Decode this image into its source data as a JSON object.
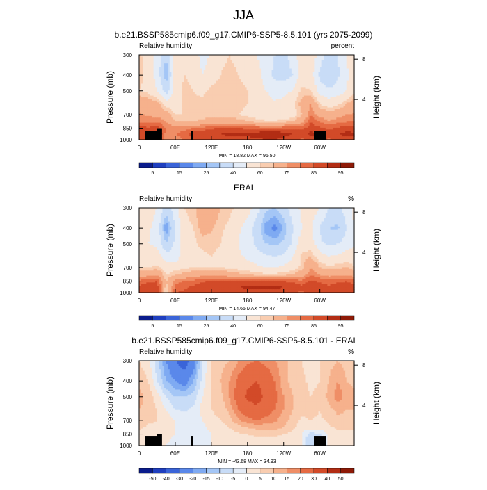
{
  "figure": {
    "season": "JJA"
  },
  "colors": {
    "frame": "#000000",
    "land_mask": "#000000",
    "background": "#ffffff"
  },
  "chart_data": [
    {
      "type": "heatmap",
      "title": "b.e21.BSSP585cmip6.f09_g17.CMIP6-SSP5-8.5.101 (yrs 2075-2099)",
      "left_string": "Relative humidity",
      "right_string": "percent",
      "ylabel": "Pressure (mb)",
      "ylabel_right": "Height (km)",
      "x_ticks": [
        "0",
        "60E",
        "120E",
        "180",
        "120W",
        "60W"
      ],
      "x_tick_values": [
        0,
        60,
        120,
        180,
        240,
        300
      ],
      "xlim": [
        0,
        357
      ],
      "y_ticks": [
        "300",
        "400",
        "500",
        "700",
        "850",
        "1000"
      ],
      "y_tick_values": [
        300,
        400,
        500,
        700,
        850,
        1000
      ],
      "ylim": [
        1000,
        300
      ],
      "y_scale": "log-pressure",
      "height_ticks": [
        "4",
        "8"
      ],
      "height_tick_values": [
        4,
        8
      ],
      "stats": "MIN = 18.82  MAX = 96.50",
      "colorbar_labels": [
        "5",
        "15",
        "25",
        "40",
        "60",
        "75",
        "85",
        "95"
      ],
      "colorbar_colors": [
        "#0a1c8c",
        "#1f3fbf",
        "#3a64d8",
        "#5a88ea",
        "#7faaf2",
        "#a4c6f6",
        "#c8dcf7",
        "#e4ecf7",
        "#f9e4d4",
        "#f9cdb0",
        "#f6b18c",
        "#ef8e66",
        "#e56a43",
        "#d24a28",
        "#b22d14",
        "#8e1a07"
      ],
      "colorbar_label_positions": [
        1,
        3,
        5,
        7,
        9,
        11,
        13,
        15
      ],
      "field": {
        "variable": "relative humidity",
        "units": "percent",
        "longitudes": [
          0,
          15,
          30,
          45,
          60,
          75,
          90,
          105,
          120,
          135,
          150,
          165,
          180,
          195,
          210,
          225,
          240,
          255,
          270,
          285,
          300,
          315,
          330,
          345
        ],
        "pressure_levels": [
          300,
          400,
          500,
          600,
          700,
          775,
          850,
          925,
          1000
        ],
        "values": [
          [
            62,
            55,
            45,
            30,
            60,
            55,
            58,
            45,
            52,
            58,
            60,
            58,
            55,
            50,
            45,
            40,
            35,
            45,
            55,
            58,
            45,
            35,
            40,
            50
          ],
          [
            62,
            58,
            45,
            25,
            55,
            60,
            58,
            50,
            55,
            60,
            62,
            60,
            58,
            55,
            45,
            38,
            35,
            40,
            55,
            55,
            38,
            30,
            38,
            48
          ],
          [
            60,
            58,
            50,
            35,
            55,
            62,
            60,
            58,
            62,
            64,
            64,
            62,
            60,
            58,
            50,
            45,
            48,
            50,
            62,
            60,
            45,
            42,
            45,
            50
          ],
          [
            72,
            70,
            68,
            55,
            55,
            62,
            62,
            62,
            64,
            64,
            64,
            62,
            60,
            58,
            55,
            52,
            52,
            58,
            68,
            75,
            60,
            55,
            58,
            65
          ],
          [
            76,
            74,
            72,
            70,
            60,
            60,
            60,
            60,
            62,
            62,
            62,
            60,
            58,
            55,
            52,
            50,
            52,
            55,
            65,
            80,
            72,
            70,
            72,
            75
          ],
          [
            80,
            78,
            80,
            75,
            65,
            65,
            65,
            68,
            70,
            70,
            70,
            68,
            66,
            64,
            62,
            62,
            64,
            66,
            72,
            85,
            80,
            76,
            78,
            80
          ],
          [
            88,
            86,
            88,
            80,
            78,
            78,
            80,
            82,
            84,
            86,
            86,
            85,
            84,
            84,
            84,
            84,
            84,
            84,
            84,
            88,
            86,
            84,
            86,
            88
          ],
          [
            90,
            88,
            92,
            78,
            80,
            82,
            88,
            88,
            90,
            90,
            92,
            92,
            92,
            93,
            94,
            94,
            93,
            90,
            88,
            92,
            90,
            88,
            90,
            92
          ],
          [
            88,
            86,
            90,
            75,
            78,
            80,
            86,
            86,
            86,
            86,
            88,
            88,
            88,
            88,
            90,
            90,
            88,
            86,
            84,
            86,
            86,
            84,
            86,
            88
          ]
        ]
      }
    },
    {
      "type": "heatmap",
      "title": "ERAI",
      "left_string": "Relative humidity",
      "right_string": "%",
      "ylabel": "Pressure (mb)",
      "ylabel_right": "Height (km)",
      "x_ticks": [
        "0",
        "60E",
        "120E",
        "180",
        "120W",
        "60W"
      ],
      "x_tick_values": [
        0,
        60,
        120,
        180,
        240,
        300
      ],
      "xlim": [
        0,
        357
      ],
      "y_ticks": [
        "300",
        "400",
        "500",
        "700",
        "850",
        "1000"
      ],
      "y_tick_values": [
        300,
        400,
        500,
        700,
        850,
        1000
      ],
      "ylim": [
        1000,
        300
      ],
      "y_scale": "log-pressure",
      "height_ticks": [
        "4",
        "8"
      ],
      "height_tick_values": [
        4,
        8
      ],
      "stats": "MIN = 14.65  MAX = 94.47",
      "colorbar_labels": [
        "5",
        "15",
        "25",
        "40",
        "60",
        "75",
        "85",
        "95"
      ],
      "colorbar_colors": [
        "#0a1c8c",
        "#1f3fbf",
        "#3a64d8",
        "#5a88ea",
        "#7faaf2",
        "#a4c6f6",
        "#c8dcf7",
        "#e4ecf7",
        "#f9e4d4",
        "#f9cdb0",
        "#f6b18c",
        "#ef8e66",
        "#e56a43",
        "#d24a28",
        "#b22d14",
        "#8e1a07"
      ],
      "colorbar_label_positions": [
        1,
        3,
        5,
        7,
        9,
        11,
        13,
        15
      ],
      "field": {
        "variable": "relative humidity",
        "units": "%",
        "longitudes": [
          0,
          15,
          30,
          45,
          60,
          75,
          90,
          105,
          120,
          135,
          150,
          165,
          180,
          195,
          210,
          225,
          240,
          255,
          270,
          285,
          300,
          315,
          330,
          345
        ],
        "pressure_levels": [
          300,
          400,
          500,
          600,
          700,
          775,
          850,
          925,
          1000
        ],
        "values": [
          [
            55,
            55,
            50,
            35,
            45,
            60,
            62,
            72,
            70,
            65,
            62,
            58,
            55,
            45,
            32,
            30,
            35,
            45,
            52,
            55,
            50,
            40,
            38,
            45
          ],
          [
            52,
            52,
            45,
            20,
            40,
            58,
            60,
            68,
            66,
            62,
            58,
            52,
            45,
            35,
            22,
            18,
            25,
            40,
            50,
            52,
            40,
            30,
            28,
            40
          ],
          [
            50,
            50,
            48,
            30,
            42,
            55,
            58,
            62,
            62,
            60,
            55,
            50,
            45,
            38,
            30,
            28,
            32,
            42,
            55,
            55,
            42,
            38,
            40,
            45
          ],
          [
            55,
            55,
            55,
            45,
            45,
            55,
            58,
            58,
            60,
            58,
            55,
            52,
            48,
            45,
            42,
            40,
            42,
            50,
            62,
            65,
            55,
            50,
            52,
            55
          ],
          [
            60,
            60,
            62,
            55,
            55,
            58,
            60,
            60,
            60,
            60,
            58,
            56,
            54,
            52,
            50,
            50,
            52,
            55,
            62,
            75,
            65,
            62,
            64,
            65
          ],
          [
            70,
            72,
            74,
            60,
            65,
            68,
            70,
            72,
            72,
            72,
            70,
            68,
            66,
            64,
            62,
            62,
            64,
            66,
            70,
            80,
            75,
            72,
            72,
            74
          ],
          [
            82,
            84,
            85,
            65,
            78,
            80,
            82,
            84,
            86,
            86,
            86,
            85,
            85,
            86,
            86,
            86,
            85,
            84,
            82,
            86,
            84,
            82,
            84,
            85
          ],
          [
            86,
            88,
            88,
            62,
            82,
            84,
            86,
            88,
            90,
            90,
            90,
            90,
            91,
            92,
            92,
            92,
            90,
            88,
            86,
            90,
            88,
            86,
            88,
            88
          ],
          [
            88,
            90,
            90,
            60,
            85,
            86,
            88,
            88,
            88,
            88,
            88,
            88,
            88,
            88,
            88,
            88,
            88,
            86,
            84,
            88,
            88,
            86,
            88,
            88
          ]
        ]
      }
    },
    {
      "type": "heatmap",
      "title": "b.e21.BSSP585cmip6.f09_g17.CMIP6-SSP5-8.5.101 - ERAI",
      "left_string": "Relative humidity",
      "right_string": "%",
      "ylabel": "Pressure (mb)",
      "ylabel_right": "Height (km)",
      "x_ticks": [
        "0",
        "60E",
        "120E",
        "180",
        "120W",
        "60W"
      ],
      "x_tick_values": [
        0,
        60,
        120,
        180,
        240,
        300
      ],
      "xlim": [
        0,
        357
      ],
      "y_ticks": [
        "300",
        "400",
        "500",
        "700",
        "850",
        "1000"
      ],
      "y_tick_values": [
        300,
        400,
        500,
        700,
        850,
        1000
      ],
      "ylim": [
        1000,
        300
      ],
      "y_scale": "log-pressure",
      "height_ticks": [
        "4",
        "8"
      ],
      "height_tick_values": [
        4,
        8
      ],
      "stats": "MIN = -43.68  MAX = 34.93",
      "colorbar_labels": [
        "-50",
        "-40",
        "-30",
        "-20",
        "-15",
        "-10",
        "-5",
        "0",
        "5",
        "10",
        "15",
        "20",
        "30",
        "40",
        "50"
      ],
      "colorbar_colors": [
        "#0a1c8c",
        "#1f3fbf",
        "#3a64d8",
        "#5a88ea",
        "#7faaf2",
        "#a4c6f6",
        "#c8dcf7",
        "#e4ecf7",
        "#f9e4d4",
        "#f9cdb0",
        "#f6b18c",
        "#ef8e66",
        "#e56a43",
        "#d24a28",
        "#b22d14",
        "#8e1a07"
      ],
      "colorbar_label_positions": [
        1,
        2,
        3,
        4,
        5,
        6,
        7,
        8,
        9,
        10,
        11,
        12,
        13,
        14,
        15
      ],
      "field": {
        "variable": "relative humidity difference",
        "units": "%",
        "longitudes": [
          0,
          15,
          30,
          45,
          60,
          75,
          90,
          105,
          120,
          135,
          150,
          165,
          180,
          195,
          210,
          225,
          240,
          255,
          270,
          285,
          300,
          315,
          330,
          345
        ],
        "pressure_levels": [
          300,
          400,
          500,
          600,
          700,
          775,
          850,
          925,
          1000
        ],
        "values": [
          [
            5,
            2,
            -8,
            -20,
            -30,
            -35,
            -25,
            -5,
            5,
            8,
            10,
            15,
            18,
            20,
            18,
            15,
            12,
            8,
            5,
            3,
            5,
            8,
            10,
            8
          ],
          [
            8,
            5,
            -5,
            -15,
            -20,
            -25,
            -15,
            -3,
            5,
            10,
            15,
            22,
            28,
            30,
            26,
            20,
            12,
            8,
            6,
            4,
            5,
            10,
            15,
            10
          ],
          [
            12,
            8,
            2,
            -5,
            -10,
            -10,
            -8,
            0,
            5,
            8,
            15,
            25,
            32,
            34,
            28,
            22,
            15,
            10,
            6,
            5,
            6,
            12,
            18,
            12
          ],
          [
            10,
            8,
            5,
            0,
            -5,
            -6,
            -4,
            2,
            5,
            6,
            12,
            20,
            25,
            28,
            25,
            20,
            15,
            10,
            6,
            8,
            5,
            8,
            12,
            10
          ],
          [
            8,
            6,
            5,
            3,
            0,
            -2,
            -3,
            0,
            4,
            5,
            8,
            14,
            18,
            20,
            18,
            16,
            12,
            8,
            4,
            5,
            4,
            6,
            8,
            8
          ],
          [
            6,
            4,
            4,
            2,
            0,
            -4,
            -5,
            -2,
            2,
            3,
            5,
            8,
            10,
            12,
            12,
            12,
            10,
            6,
            2,
            4,
            3,
            4,
            6,
            6
          ],
          [
            4,
            2,
            3,
            2,
            0,
            -3,
            -4,
            -2,
            0,
            2,
            3,
            4,
            5,
            6,
            6,
            6,
            5,
            3,
            0,
            -8,
            -6,
            2,
            3,
            4
          ],
          [
            3,
            1,
            2,
            1,
            -2,
            -2,
            -3,
            -1,
            0,
            2,
            2,
            3,
            3,
            4,
            4,
            4,
            3,
            2,
            0,
            -10,
            -8,
            2,
            2,
            3
          ],
          [
            2,
            0,
            1,
            0,
            -2,
            -1,
            -2,
            0,
            0,
            1,
            1,
            2,
            2,
            3,
            3,
            3,
            2,
            1,
            0,
            -10,
            -8,
            1,
            2,
            2
          ]
        ]
      }
    }
  ]
}
